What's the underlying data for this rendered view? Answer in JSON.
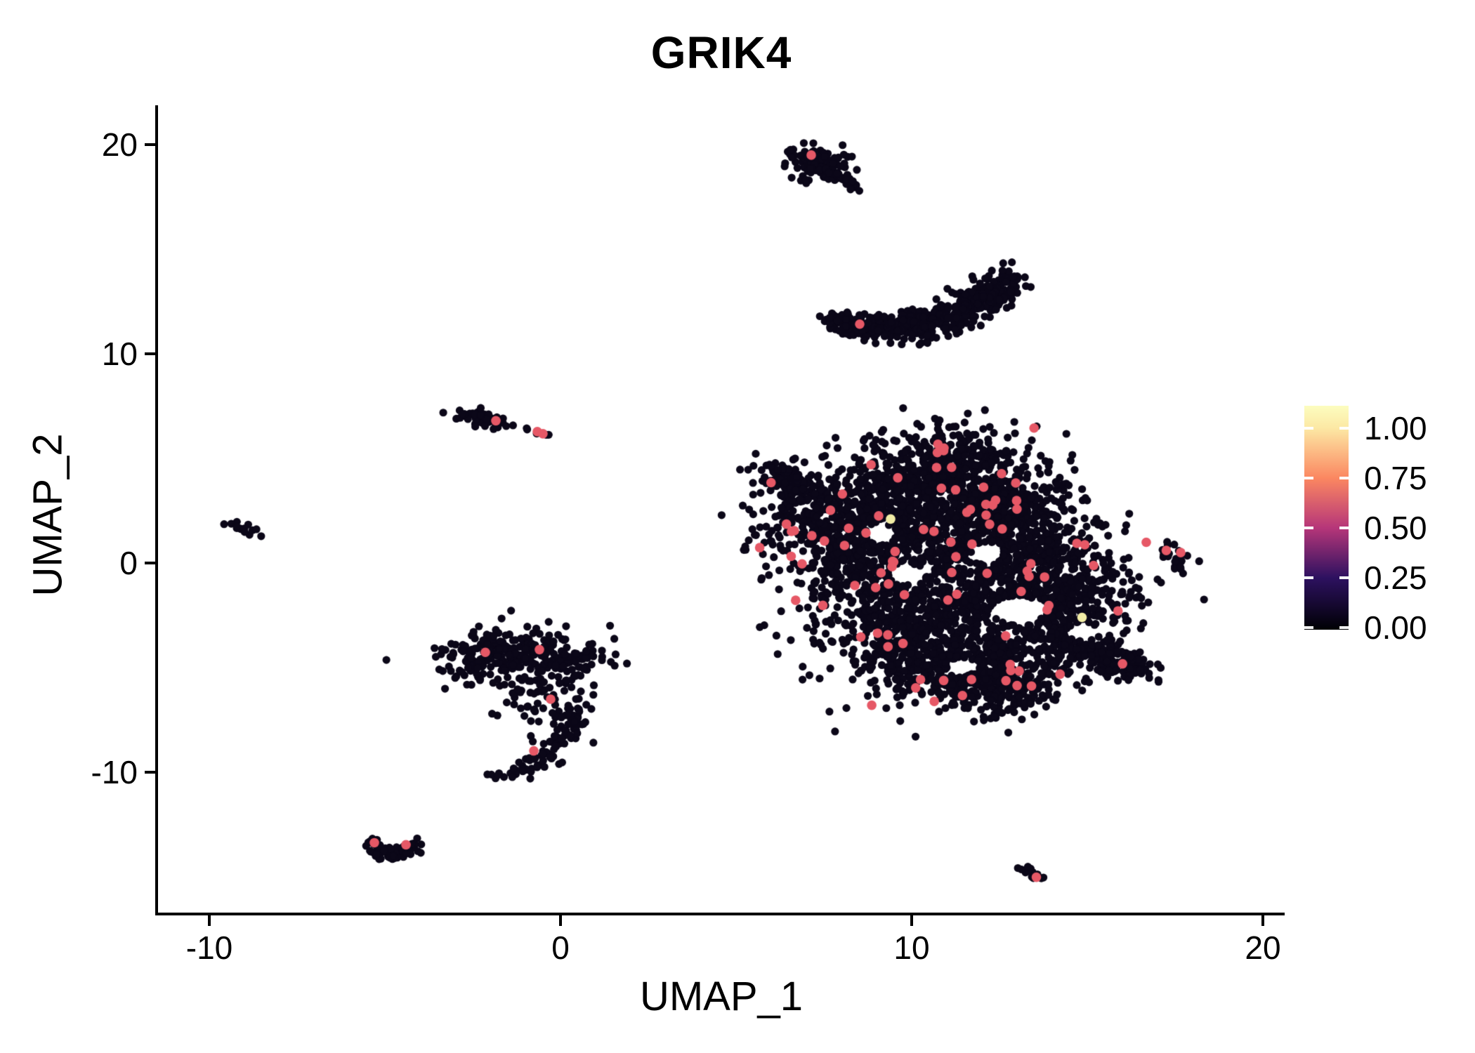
{
  "chart_data": {
    "type": "scatter",
    "title": "GRIK4",
    "xlabel": "UMAP_1",
    "ylabel": "UMAP_2",
    "xlim": [
      -11.5,
      20.5
    ],
    "ylim": [
      -17.8,
      22.1
    ],
    "grid": false,
    "x_ticks": [
      {
        "v": -10,
        "t": "-10"
      },
      {
        "v": 0,
        "t": "0"
      },
      {
        "v": 10,
        "t": "10"
      },
      {
        "v": 20,
        "t": "20"
      }
    ],
    "y_ticks": [
      {
        "v": 20,
        "t": "20"
      },
      {
        "v": 10,
        "t": "10"
      },
      {
        "v": 0,
        "t": "0"
      },
      {
        "v": -10,
        "t": "-10"
      }
    ],
    "colors": {
      "point_zero": "#0B0718",
      "point_accent": "#E65866",
      "point_bright": "#F2EDA6",
      "axis": "#000000",
      "background": "#FFFFFF"
    },
    "colorbar": {
      "orientation": "vertical",
      "position": "right",
      "tick_labels": [
        "1.00",
        "0.75",
        "0.50",
        "0.25",
        "0.00"
      ],
      "tick_fracs_from_top": [
        0.1,
        0.323,
        0.545,
        0.768,
        0.991
      ],
      "gradient_stops_bottom_to_top": [
        {
          "pos": 0.0,
          "color": "#000004"
        },
        {
          "pos": 0.232,
          "color": "#2D1160"
        },
        {
          "pos": 0.455,
          "color": "#B63679"
        },
        {
          "pos": 0.677,
          "color": "#FB8761"
        },
        {
          "pos": 0.9,
          "color": "#FCE8A4"
        },
        {
          "pos": 1.0,
          "color": "#FCFDBF"
        }
      ]
    },
    "point_radius_px": {
      "zero": 5.6,
      "accent": 6.8,
      "bright": 6.8
    },
    "clusters": [
      {
        "name": "top-small",
        "blobs": [
          {
            "cx": 7.25,
            "cy": 19.3,
            "rx": 0.42,
            "ry": 0.36,
            "rot": -20,
            "n": 58
          },
          {
            "cx": 7.6,
            "cy": 18.85,
            "rx": 0.3,
            "ry": 0.28,
            "rot": 0,
            "n": 30
          },
          {
            "cx": 7.15,
            "cy": 18.45,
            "rx": 0.2,
            "ry": 0.16,
            "rot": 0,
            "n": 12
          }
        ],
        "bands": [
          {
            "p0": [
              7.7,
              18.75
            ],
            "p1": [
              8.1,
              18.4
            ],
            "p2": [
              8.45,
              17.9
            ],
            "w": 0.11,
            "n": 28
          }
        ],
        "accents": [
          [
            7.14,
            19.5
          ]
        ]
      },
      {
        "name": "crescent",
        "blobs": [
          {
            "cx": 12.35,
            "cy": 12.9,
            "rx": 0.33,
            "ry": 0.5,
            "rot": -35,
            "n": 45
          }
        ],
        "bands": [
          {
            "p0": [
              7.68,
              11.62
            ],
            "p1": [
              10.5,
              10.35
            ],
            "p2": [
              12.78,
              13.6
            ],
            "w": [
              0.15,
              0.55,
              0.3
            ],
            "n": 540
          }
        ],
        "accents": [
          [
            8.52,
            11.42
          ]
        ]
      },
      {
        "name": "small-left",
        "blobs": [
          {
            "cx": -2.15,
            "cy": 6.9,
            "rx": 0.44,
            "ry": 0.2,
            "rot": -15,
            "n": 58
          },
          {
            "cx": -0.95,
            "cy": 6.42,
            "rx": 0.06,
            "ry": 0.06,
            "rot": 0,
            "n": 2
          },
          {
            "cx": -0.45,
            "cy": 6.15,
            "rx": 0.15,
            "ry": 0.08,
            "rot": -20,
            "n": 4
          }
        ],
        "bands": [],
        "accents": [
          [
            -1.84,
            6.8
          ],
          [
            -0.66,
            6.28
          ],
          [
            -0.5,
            6.18
          ]
        ]
      },
      {
        "name": "dot-left",
        "blobs": [
          {
            "cx": -9.1,
            "cy": 1.7,
            "rx": 0.26,
            "ry": 0.12,
            "rot": -25,
            "n": 15
          }
        ],
        "bands": [],
        "accents": []
      },
      {
        "name": "midleft-hook",
        "blobs": [
          {
            "cx": -1.95,
            "cy": -4.35,
            "rx": 0.85,
            "ry": 0.6,
            "rot": 8,
            "n": 160
          },
          {
            "cx": -0.1,
            "cy": -4.55,
            "rx": 1.0,
            "ry": 0.62,
            "rot": 0,
            "n": 135
          },
          {
            "cx": -0.5,
            "cy": -6.3,
            "rx": 0.85,
            "ry": 0.75,
            "rot": 0,
            "n": 62
          }
        ],
        "bands": [
          {
            "p0": [
              0.25,
              -6.9
            ],
            "p1": [
              0.65,
              -9.2
            ],
            "p2": [
              -2.1,
              -10.45
            ],
            "w": 0.22,
            "n": 95
          }
        ],
        "accents": [
          [
            -2.14,
            -4.27
          ],
          [
            -0.6,
            -4.14
          ],
          [
            -0.28,
            -6.51
          ],
          [
            -0.76,
            -8.98
          ]
        ]
      },
      {
        "name": "bottomleft-v",
        "blobs": [
          {
            "cx": -4.8,
            "cy": -14.0,
            "rx": 0.18,
            "ry": 0.15,
            "rot": 0,
            "n": 10
          }
        ],
        "bands": [
          {
            "p0": [
              -5.45,
              -13.3
            ],
            "p1": [
              -4.8,
              -14.55
            ],
            "p2": [
              -4.1,
              -13.25
            ],
            "w": 0.16,
            "n": 52
          }
        ],
        "accents": [
          [
            -5.3,
            -13.37
          ],
          [
            -4.4,
            -13.47
          ]
        ]
      },
      {
        "name": "main-blob",
        "blobs": [
          {
            "cx": 11.2,
            "cy": 4.6,
            "rx": 1.25,
            "ry": 1.0,
            "rot": 0,
            "n": 380
          },
          {
            "cx": 8.7,
            "cy": 2.7,
            "rx": 1.5,
            "ry": 1.1,
            "rot": 20,
            "n": 430
          },
          {
            "cx": 6.6,
            "cy": 3.6,
            "rx": 0.45,
            "ry": 0.75,
            "rot": 30,
            "n": 70
          },
          {
            "cx": 8.1,
            "cy": 0.4,
            "rx": 1.05,
            "ry": 1.25,
            "rot": 0,
            "n": 280
          },
          {
            "cx": 10.8,
            "cy": 0.9,
            "rx": 1.65,
            "ry": 1.5,
            "rot": 0,
            "n": 640
          },
          {
            "cx": 12.4,
            "cy": 2.9,
            "rx": 1.0,
            "ry": 1.0,
            "rot": 0,
            "n": 240
          },
          {
            "cx": 10.5,
            "cy": -3.2,
            "rx": 1.55,
            "ry": 1.6,
            "rot": 0,
            "n": 760
          },
          {
            "cx": 11.9,
            "cy": -5.3,
            "rx": 1.25,
            "ry": 0.85,
            "rot": 0,
            "n": 330
          },
          {
            "cx": 13.3,
            "cy": 0.4,
            "rx": 1.15,
            "ry": 1.4,
            "rot": 0,
            "n": 370
          },
          {
            "cx": 14.25,
            "cy": -1.9,
            "rx": 1.15,
            "ry": 1.1,
            "rot": 0,
            "n": 340
          },
          {
            "cx": 12.7,
            "cy": -6.1,
            "rx": 0.8,
            "ry": 0.55,
            "rot": 0,
            "n": 115
          }
        ],
        "bands": [
          {
            "p0": [
              5.95,
              4.55
            ],
            "p1": [
              6.7,
              3.9
            ],
            "p2": [
              7.5,
              2.9
            ],
            "w": 0.3,
            "n": 65
          },
          {
            "p0": [
              13.9,
              -3.5
            ],
            "p1": [
              15.2,
              -4.2
            ],
            "p2": [
              16.5,
              -5.15
            ],
            "w": [
              0.55,
              0.5,
              0.28
            ],
            "n": 250
          }
        ],
        "holes": [
          {
            "cx": 13.05,
            "cy": -2.25,
            "rx": 0.8,
            "ry": 0.65
          },
          {
            "cx": 11.45,
            "cy": -4.95,
            "rx": 0.45,
            "ry": 0.4
          },
          {
            "cx": 9.9,
            "cy": -0.55,
            "rx": 0.5,
            "ry": 0.5
          },
          {
            "cx": 12.15,
            "cy": 0.45,
            "rx": 0.45,
            "ry": 0.55
          },
          {
            "cx": 14.9,
            "cy": -3.3,
            "rx": 0.5,
            "ry": 0.4
          },
          {
            "cx": 9.1,
            "cy": 1.4,
            "rx": 0.4,
            "ry": 0.5
          }
        ],
        "accent_n": 92,
        "accents": [],
        "bright": [
          [
            9.4,
            2.1
          ],
          [
            14.85,
            -2.6
          ]
        ]
      },
      {
        "name": "right-small",
        "blobs": [
          {
            "cx": 17.35,
            "cy": 0.55,
            "rx": 0.22,
            "ry": 0.25,
            "rot": 0,
            "n": 10
          },
          {
            "cx": 17.72,
            "cy": 0.28,
            "rx": 0.22,
            "ry": 0.22,
            "rot": 0,
            "n": 8
          }
        ],
        "bands": [
          {
            "p0": [
              17.5,
              0.1
            ],
            "p1": [
              17.58,
              -0.15
            ],
            "p2": [
              17.6,
              -0.45
            ],
            "w": 0.08,
            "n": 7
          }
        ],
        "accents": [
          [
            17.25,
            0.6
          ],
          [
            17.66,
            0.5
          ]
        ]
      },
      {
        "name": "bottomright-dot",
        "blobs": [],
        "bands": [
          {
            "p0": [
              13.15,
              -14.55
            ],
            "p1": [
              13.4,
              -14.8
            ],
            "p2": [
              13.62,
              -15.08
            ],
            "w": 0.09,
            "n": 14
          }
        ],
        "accents": [
          [
            13.55,
            -15.02
          ]
        ]
      }
    ]
  }
}
